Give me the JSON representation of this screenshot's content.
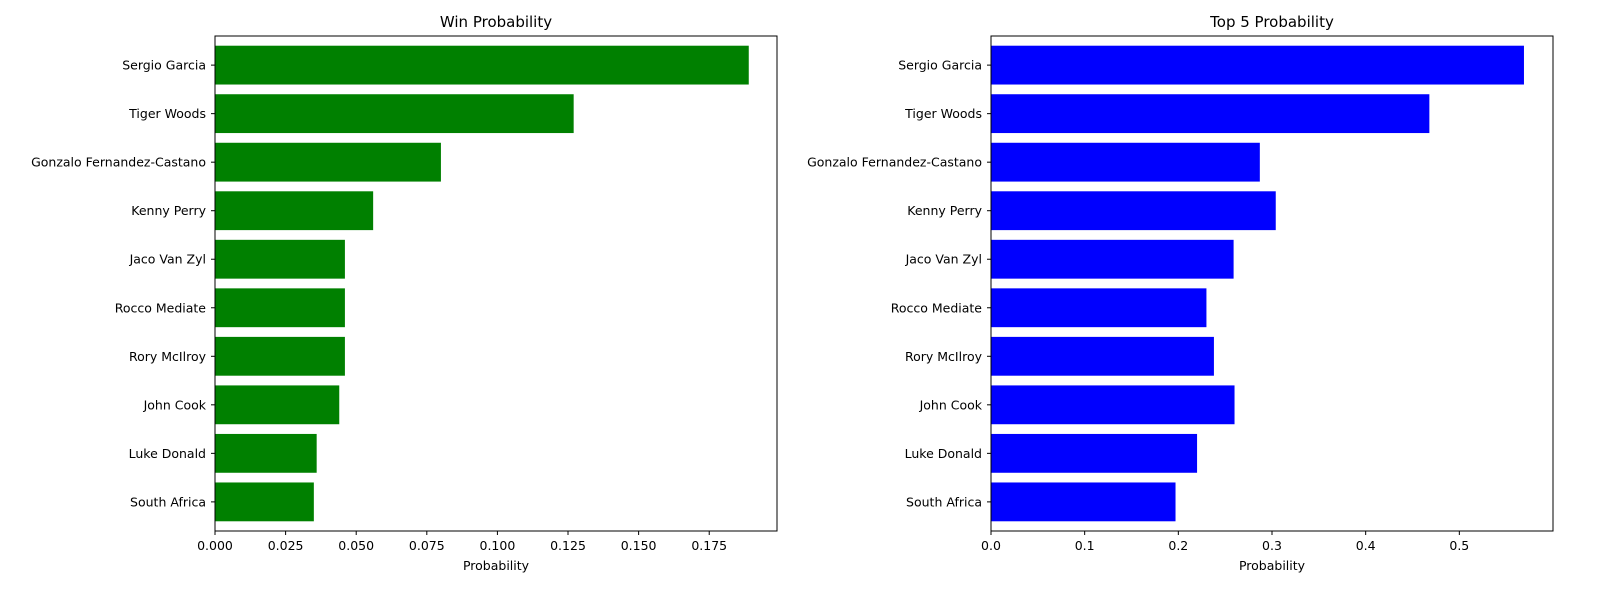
{
  "chart_data": [
    {
      "type": "bar",
      "orientation": "horizontal",
      "title": "Win Probability",
      "xlabel": "Probability",
      "ylabel": "",
      "categories": [
        "Sergio Garcia",
        "Tiger Woods",
        "Gonzalo Fernandez-Castano",
        "Kenny Perry",
        "Jaco Van Zyl",
        "Rocco Mediate",
        "Rory McIlroy",
        "John Cook",
        "Luke Donald",
        "South Africa"
      ],
      "values": [
        0.189,
        0.127,
        0.08,
        0.056,
        0.046,
        0.046,
        0.046,
        0.044,
        0.036,
        0.035
      ],
      "xlim": [
        0,
        0.199
      ],
      "xticks": [
        0.0,
        0.025,
        0.05,
        0.075,
        0.1,
        0.125,
        0.15,
        0.175
      ],
      "xtick_labels": [
        "0.000",
        "0.025",
        "0.050",
        "0.075",
        "0.100",
        "0.125",
        "0.150",
        "0.175"
      ],
      "color": "#008000",
      "grid": false
    },
    {
      "type": "bar",
      "orientation": "horizontal",
      "title": "Top 5 Probability",
      "xlabel": "Probability",
      "ylabel": "",
      "categories": [
        "Sergio Garcia",
        "Tiger Woods",
        "Gonzalo Fernandez-Castano",
        "Kenny Perry",
        "Jaco Van Zyl",
        "Rocco Mediate",
        "Rory McIlroy",
        "John Cook",
        "Luke Donald",
        "South Africa"
      ],
      "values": [
        0.569,
        0.468,
        0.287,
        0.304,
        0.259,
        0.23,
        0.238,
        0.26,
        0.22,
        0.197
      ],
      "xlim": [
        0,
        0.6
      ],
      "xticks": [
        0,
        0.1,
        0.2,
        0.3,
        0.4,
        0.5
      ],
      "xtick_labels": [
        "0.0",
        "0.1",
        "0.2",
        "0.3",
        "0.4",
        "0.5"
      ],
      "color": "#0000ff",
      "grid": false
    }
  ]
}
